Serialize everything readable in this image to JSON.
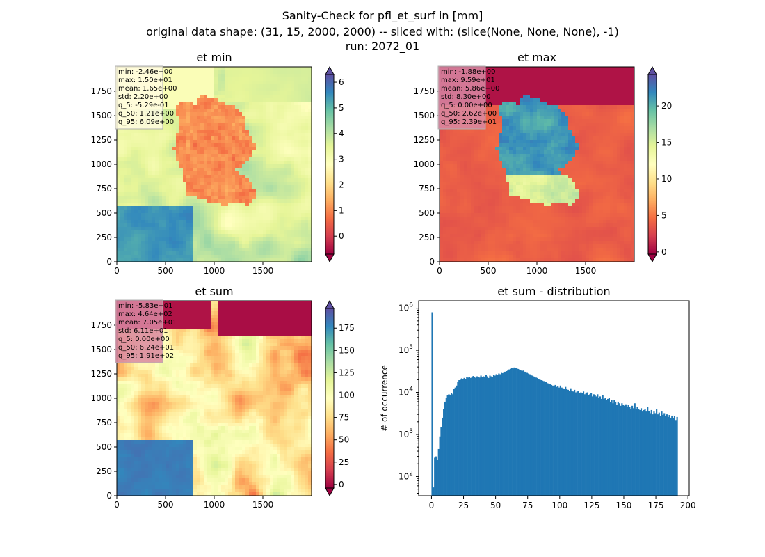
{
  "figure": {
    "title_lines": [
      "Sanity-Check for pfl_et_surf in [mm]",
      "original data shape: (31, 15, 2000, 2000) -- sliced with: (slice(None, None, None), -1)",
      "run: 2072_01"
    ]
  },
  "colormap": "Spectral",
  "chart_data": [
    {
      "type": "heatmap",
      "title": "et min",
      "xlim": [
        0,
        2000
      ],
      "ylim": [
        0,
        2000
      ],
      "xticks": [
        0,
        500,
        1000,
        1500
      ],
      "yticks": [
        0,
        250,
        500,
        750,
        1000,
        1250,
        1500,
        1750
      ],
      "colorbar": {
        "ticks": [
          0,
          1,
          2,
          3,
          4,
          5,
          6
        ],
        "range": [
          -0.7,
          6.3
        ],
        "extend": "both"
      },
      "stats": [
        "min: -2.46e+00",
        "max: 1.50e+01",
        "mean: 1.65e+00",
        "std: 2.20e+00",
        "q_5: -5.29e-01",
        "q_50: 1.21e+00",
        "q_95: 6.09e+00"
      ],
      "stats_box_color": "#fffbe0"
    },
    {
      "type": "heatmap",
      "title": "et max",
      "xlim": [
        0,
        2000
      ],
      "ylim": [
        0,
        2000
      ],
      "xticks": [
        0,
        500,
        1000,
        1500
      ],
      "yticks": [
        0,
        250,
        500,
        750,
        1000,
        1250,
        1500,
        1750
      ],
      "colorbar": {
        "ticks": [
          0,
          5,
          10,
          15,
          20
        ],
        "range": [
          -0.3,
          24.3
        ],
        "extend": "both"
      },
      "stats": [
        "min: -1.88e+00",
        "max: 9.59e+01",
        "mean: 5.86e+00",
        "std: 8.30e+00",
        "q_5: 0.00e+00",
        "q_50: 2.62e+00",
        "q_95: 2.39e+01"
      ],
      "stats_box_color": "#d98aa3"
    },
    {
      "type": "heatmap",
      "title": "et sum",
      "xlim": [
        0,
        2000
      ],
      "ylim": [
        0,
        2000
      ],
      "xticks": [
        0,
        500,
        1000,
        1500
      ],
      "yticks": [
        0,
        250,
        500,
        750,
        1000,
        1250,
        1500,
        1750
      ],
      "colorbar": {
        "ticks": [
          0,
          25,
          50,
          75,
          100,
          125,
          150,
          175
        ],
        "range": [
          -4,
          197
        ],
        "extend": "both"
      },
      "stats": [
        "min: -5.83e+01",
        "max: 4.64e+02",
        "mean: 7.05e+01",
        "std: 6.11e+01",
        "q_5: 0.00e+00",
        "q_50: 6.24e+01",
        "q_95: 1.91e+02"
      ],
      "stats_box_color": "#d98aa3"
    },
    {
      "type": "bar",
      "title": "et sum - distribution",
      "ylabel": "# of occurrence",
      "yscale": "log",
      "xlim": [
        -10,
        201
      ],
      "ylim": [
        35,
        1500000
      ],
      "xticks": [
        0,
        25,
        50,
        75,
        100,
        125,
        150,
        175,
        200
      ],
      "yticks": [
        100,
        1000,
        10000,
        100000,
        1000000
      ],
      "ytick_labels": [
        [
          "10",
          "2"
        ],
        [
          "10",
          "3"
        ],
        [
          "10",
          "4"
        ],
        [
          "10",
          "5"
        ],
        [
          "10",
          "6"
        ]
      ],
      "bar_color": "#1f77b4",
      "bin_width": 1,
      "bins": [
        [
          0,
          800000
        ],
        [
          1,
          55
        ],
        [
          2,
          280
        ],
        [
          3,
          300
        ],
        [
          4,
          250
        ],
        [
          5,
          450
        ],
        [
          6,
          900
        ],
        [
          7,
          1500
        ],
        [
          8,
          2500
        ],
        [
          9,
          4000
        ],
        [
          10,
          6000
        ],
        [
          11,
          7500
        ],
        [
          12,
          8500
        ],
        [
          13,
          9000
        ],
        [
          14,
          8800
        ],
        [
          15,
          9500
        ],
        [
          16,
          9000
        ],
        [
          17,
          12000
        ],
        [
          18,
          13000
        ],
        [
          19,
          14500
        ],
        [
          20,
          18000
        ],
        [
          21,
          19500
        ],
        [
          22,
          20000
        ],
        [
          23,
          21500
        ],
        [
          24,
          21000
        ],
        [
          25,
          22000
        ],
        [
          26,
          21000
        ],
        [
          27,
          23000
        ],
        [
          28,
          22500
        ],
        [
          29,
          23500
        ],
        [
          30,
          22000
        ],
        [
          31,
          23000
        ],
        [
          32,
          24500
        ],
        [
          33,
          23000
        ],
        [
          34,
          22000
        ],
        [
          35,
          24000
        ],
        [
          36,
          23500
        ],
        [
          37,
          22500
        ],
        [
          38,
          25000
        ],
        [
          39,
          23000
        ],
        [
          40,
          24000
        ],
        [
          41,
          23500
        ],
        [
          42,
          25500
        ],
        [
          43,
          24000
        ],
        [
          44,
          22000
        ],
        [
          45,
          25000
        ],
        [
          46,
          24000
        ],
        [
          47,
          23000
        ],
        [
          48,
          26000
        ],
        [
          49,
          25000
        ],
        [
          50,
          27000
        ],
        [
          51,
          26000
        ],
        [
          52,
          28000
        ],
        [
          53,
          27000
        ],
        [
          54,
          29000
        ],
        [
          55,
          28500
        ],
        [
          56,
          30000
        ],
        [
          57,
          31000
        ],
        [
          58,
          32000
        ],
        [
          59,
          33000
        ],
        [
          60,
          35000
        ],
        [
          61,
          36000
        ],
        [
          62,
          38000
        ],
        [
          63,
          37000
        ],
        [
          64,
          39000
        ],
        [
          65,
          38000
        ],
        [
          66,
          37500
        ],
        [
          67,
          36000
        ],
        [
          68,
          35000
        ],
        [
          69,
          34000
        ],
        [
          70,
          32000
        ],
        [
          71,
          33000
        ],
        [
          72,
          31000
        ],
        [
          73,
          30000
        ],
        [
          74,
          29000
        ],
        [
          75,
          28000
        ],
        [
          76,
          27000
        ],
        [
          77,
          26000
        ],
        [
          78,
          25000
        ],
        [
          79,
          24000
        ],
        [
          80,
          23000
        ],
        [
          81,
          22500
        ],
        [
          82,
          22000
        ],
        [
          83,
          21000
        ],
        [
          84,
          20000
        ],
        [
          85,
          19500
        ],
        [
          86,
          19000
        ],
        [
          87,
          18500
        ],
        [
          88,
          18000
        ],
        [
          89,
          17500
        ],
        [
          90,
          16500
        ],
        [
          91,
          16000
        ],
        [
          92,
          15500
        ],
        [
          93,
          15000
        ],
        [
          94,
          14500
        ],
        [
          95,
          14000
        ],
        [
          96,
          15000
        ],
        [
          97,
          13500
        ],
        [
          98,
          14000
        ],
        [
          99,
          13000
        ],
        [
          100,
          14500
        ],
        [
          101,
          13000
        ],
        [
          102,
          12500
        ],
        [
          103,
          12000
        ],
        [
          104,
          13500
        ],
        [
          105,
          12000
        ],
        [
          106,
          11500
        ],
        [
          107,
          11000
        ],
        [
          108,
          12500
        ],
        [
          109,
          11000
        ],
        [
          110,
          10500
        ],
        [
          111,
          11500
        ],
        [
          112,
          10000
        ],
        [
          113,
          10500
        ],
        [
          114,
          11000
        ],
        [
          115,
          9500
        ],
        [
          116,
          10000
        ],
        [
          117,
          9800
        ],
        [
          118,
          10500
        ],
        [
          119,
          9000
        ],
        [
          120,
          9500
        ],
        [
          121,
          10000
        ],
        [
          122,
          8500
        ],
        [
          123,
          9000
        ],
        [
          124,
          9500
        ],
        [
          125,
          8000
        ],
        [
          126,
          9000
        ],
        [
          127,
          8500
        ],
        [
          128,
          8000
        ],
        [
          129,
          9000
        ],
        [
          130,
          7500
        ],
        [
          131,
          8000
        ],
        [
          132,
          7000
        ],
        [
          133,
          8500
        ],
        [
          134,
          7000
        ],
        [
          135,
          7500
        ],
        [
          136,
          6500
        ],
        [
          137,
          7000
        ],
        [
          138,
          7500
        ],
        [
          139,
          6000
        ],
        [
          140,
          6500
        ],
        [
          141,
          5500
        ],
        [
          142,
          6500
        ],
        [
          143,
          6000
        ],
        [
          144,
          5000
        ],
        [
          145,
          6000
        ],
        [
          146,
          5500
        ],
        [
          147,
          4800
        ],
        [
          148,
          5500
        ],
        [
          149,
          5000
        ],
        [
          150,
          4800
        ],
        [
          151,
          5200
        ],
        [
          152,
          4500
        ],
        [
          153,
          5000
        ],
        [
          154,
          4500
        ],
        [
          155,
          4000
        ],
        [
          156,
          4800
        ],
        [
          157,
          4200
        ],
        [
          158,
          5500
        ],
        [
          159,
          4000
        ],
        [
          160,
          4500
        ],
        [
          161,
          4000
        ],
        [
          162,
          3800
        ],
        [
          163,
          4200
        ],
        [
          164,
          3500
        ],
        [
          165,
          3800
        ],
        [
          166,
          4000
        ],
        [
          167,
          3500
        ],
        [
          168,
          4500
        ],
        [
          169,
          3600
        ],
        [
          170,
          3200
        ],
        [
          171,
          3800
        ],
        [
          172,
          3000
        ],
        [
          173,
          3500
        ],
        [
          174,
          3200
        ],
        [
          175,
          4000
        ],
        [
          176,
          3000
        ],
        [
          177,
          3300
        ],
        [
          178,
          2800
        ],
        [
          179,
          3500
        ],
        [
          180,
          2900
        ],
        [
          181,
          3200
        ],
        [
          182,
          2700
        ],
        [
          183,
          3000
        ],
        [
          184,
          2600
        ],
        [
          185,
          2900
        ],
        [
          186,
          2500
        ],
        [
          187,
          2800
        ],
        [
          188,
          2400
        ],
        [
          189,
          2700
        ],
        [
          190,
          2200
        ],
        [
          191,
          2600
        ]
      ]
    }
  ]
}
